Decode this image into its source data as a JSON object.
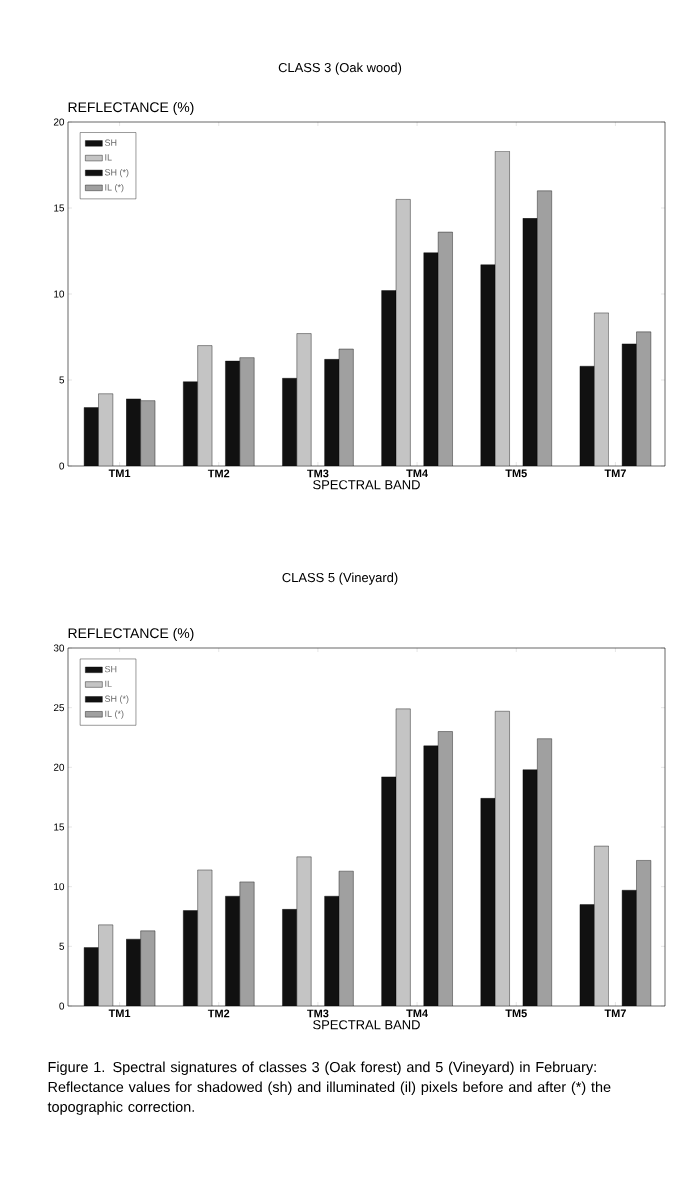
{
  "chart_data": [
    {
      "type": "bar",
      "title": "CLASS 3 (Oak wood)",
      "ylabel": "REFLECTANCE (%)",
      "xlabel": "SPECTRAL BAND",
      "categories": [
        "TM1",
        "TM2",
        "TM3",
        "TM4",
        "TM5",
        "TM7"
      ],
      "series": [
        {
          "name": "SH",
          "color": "#111111",
          "values": [
            3.4,
            4.9,
            5.1,
            10.2,
            11.7,
            5.8
          ]
        },
        {
          "name": "IL",
          "color": "#c4c4c4",
          "values": [
            4.2,
            7.0,
            7.7,
            15.5,
            18.3,
            8.9
          ]
        },
        {
          "name": "SH (*)",
          "color": "#111111",
          "values": [
            3.9,
            6.1,
            6.2,
            12.4,
            14.4,
            7.1
          ]
        },
        {
          "name": "IL (*)",
          "color": "#a0a0a0",
          "values": [
            3.8,
            6.3,
            6.8,
            13.6,
            16.0,
            7.8
          ]
        }
      ],
      "ylim": [
        0,
        20
      ],
      "yticks": [
        0,
        5,
        10,
        15,
        20
      ],
      "legend": "top left"
    },
    {
      "type": "bar",
      "title": "CLASS 5 (Vineyard)",
      "ylabel": "REFLECTANCE (%)",
      "xlabel": "SPECTRAL BAND",
      "categories": [
        "TM1",
        "TM2",
        "TM3",
        "TM4",
        "TM5",
        "TM7"
      ],
      "series": [
        {
          "name": "SH",
          "color": "#111111",
          "values": [
            4.9,
            8.0,
            8.1,
            19.2,
            17.4,
            8.5
          ]
        },
        {
          "name": "IL",
          "color": "#c4c4c4",
          "values": [
            6.8,
            11.4,
            12.5,
            24.9,
            24.7,
            13.4
          ]
        },
        {
          "name": "SH (*)",
          "color": "#111111",
          "values": [
            5.6,
            9.2,
            9.2,
            21.8,
            19.8,
            9.7
          ]
        },
        {
          "name": "IL (*)",
          "color": "#a0a0a0",
          "values": [
            6.3,
            10.4,
            11.3,
            23.0,
            22.4,
            12.2
          ]
        }
      ],
      "ylim": [
        0,
        30
      ],
      "yticks": [
        0,
        5,
        10,
        15,
        20,
        25,
        30
      ],
      "legend": "top left",
      "annotations": [
        "Figure 1. Spectral signatures of classes 3 (Oak forest) and 5 (Vineyard) in February: Reflectance values for shadowed (sh) and illuminated (il) pixels before and after (*) the topographic correction."
      ]
    }
  ]
}
